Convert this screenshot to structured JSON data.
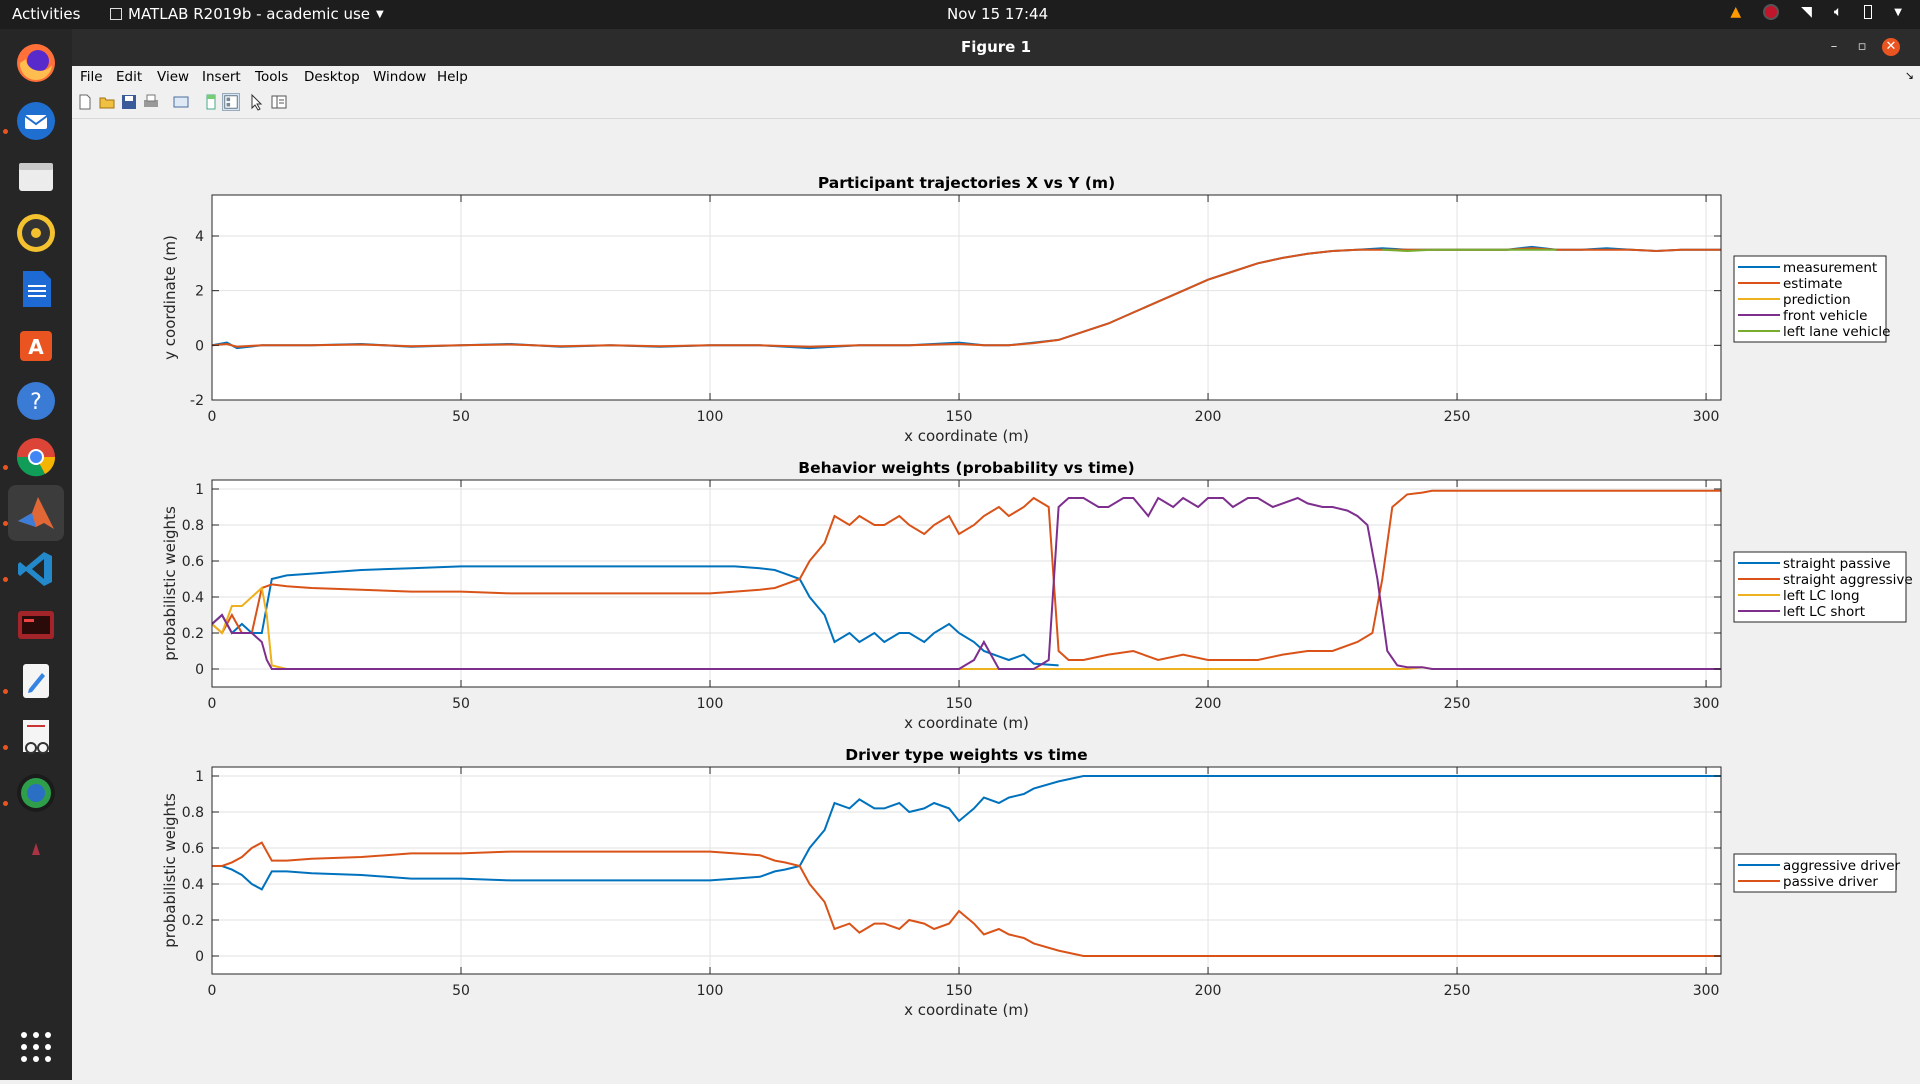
{
  "topbar": {
    "activities": "Activities",
    "app_menu": "MATLAB R2019b - academic use",
    "clock": "Nov 15  17:44"
  },
  "dock": {
    "items": [
      "firefox-icon",
      "thunderbird-icon",
      "files-icon",
      "rhythmbox-icon",
      "writer-icon",
      "software-icon",
      "help-icon",
      "chrome-icon",
      "matlab-icon",
      "vscode-icon",
      "terminal-app-icon",
      "text-editor-icon",
      "document-viewer-icon",
      "globe-app-icon",
      "settings-cone-icon",
      "show-apps-icon"
    ]
  },
  "window": {
    "title": "Figure 1",
    "menu": [
      "File",
      "Edit",
      "View",
      "Insert",
      "Tools",
      "Desktop",
      "Window",
      "Help"
    ]
  },
  "colors": {
    "blue": "#0072bd",
    "orange": "#d95319",
    "yellow": "#edb120",
    "purple": "#7e2f8e",
    "green": "#77ac30"
  },
  "chart_data": [
    {
      "type": "line",
      "title": "Participant trajectories X vs Y (m)",
      "xlabel": "x coordinate (m)",
      "ylabel": "y coordinate (m)",
      "xlim": [
        0,
        303
      ],
      "ylim": [
        -2,
        5.5
      ],
      "xticks": [
        0,
        50,
        100,
        150,
        200,
        250,
        300
      ],
      "yticks": [
        -2,
        0,
        2,
        4
      ],
      "grid": true,
      "legend": "right",
      "series": [
        {
          "name": "measurement",
          "color": "#0072bd",
          "x": [
            0,
            3,
            5,
            10,
            20,
            30,
            40,
            50,
            60,
            70,
            80,
            90,
            100,
            110,
            120,
            130,
            140,
            150,
            155,
            160,
            165,
            170,
            175,
            180,
            185,
            190,
            195,
            200,
            205,
            210,
            215,
            220,
            225,
            230,
            235,
            240,
            245,
            250,
            255,
            260,
            265,
            270,
            275,
            280,
            285,
            290,
            295,
            300,
            303
          ],
          "y": [
            0,
            0.1,
            -0.1,
            0,
            0,
            0.05,
            -0.05,
            0,
            0.05,
            -0.05,
            0,
            -0.05,
            0,
            0,
            -0.1,
            0,
            0,
            0.1,
            0,
            0,
            0.1,
            0.2,
            0.5,
            0.8,
            1.2,
            1.6,
            2.0,
            2.4,
            2.7,
            3.0,
            3.2,
            3.35,
            3.45,
            3.5,
            3.55,
            3.5,
            3.5,
            3.5,
            3.5,
            3.5,
            3.6,
            3.5,
            3.5,
            3.55,
            3.5,
            3.45,
            3.5,
            3.5,
            3.5
          ]
        },
        {
          "name": "estimate",
          "color": "#d95319",
          "x": [
            0,
            3,
            5,
            10,
            20,
            30,
            40,
            50,
            60,
            70,
            80,
            90,
            100,
            110,
            120,
            130,
            140,
            150,
            155,
            160,
            165,
            170,
            175,
            180,
            185,
            190,
            195,
            200,
            205,
            210,
            215,
            220,
            225,
            230,
            235,
            240,
            245,
            250,
            255,
            260,
            265,
            270,
            275,
            280,
            285,
            290,
            295,
            300,
            303
          ],
          "y": [
            0,
            0.05,
            -0.05,
            0,
            0,
            0.03,
            -0.03,
            0,
            0.03,
            -0.03,
            0,
            -0.03,
            0,
            0,
            -0.05,
            0,
            0,
            0.05,
            0,
            0,
            0.08,
            0.2,
            0.5,
            0.8,
            1.2,
            1.6,
            2.0,
            2.4,
            2.7,
            3.0,
            3.2,
            3.35,
            3.45,
            3.5,
            3.5,
            3.5,
            3.5,
            3.5,
            3.5,
            3.5,
            3.55,
            3.5,
            3.5,
            3.5,
            3.5,
            3.45,
            3.5,
            3.5,
            3.5
          ]
        },
        {
          "name": "prediction",
          "color": "#edb120",
          "x": [],
          "y": []
        },
        {
          "name": "front vehicle",
          "color": "#7e2f8e",
          "x": [],
          "y": []
        },
        {
          "name": "left lane vehicle",
          "color": "#77ac30",
          "x": [
            235,
            240,
            245,
            250,
            255,
            260,
            265,
            270
          ],
          "y": [
            3.5,
            3.45,
            3.5,
            3.5,
            3.5,
            3.5,
            3.5,
            3.5
          ]
        }
      ]
    },
    {
      "type": "line",
      "title": "Behavior weights (probability vs time)",
      "xlabel": "x coordinate (m)",
      "ylabel": "probabilistic weights",
      "xlim": [
        0,
        303
      ],
      "ylim": [
        -0.1,
        1.05
      ],
      "xticks": [
        0,
        50,
        100,
        150,
        200,
        250,
        300
      ],
      "yticks": [
        0,
        0.2,
        0.4,
        0.6,
        0.8,
        1
      ],
      "grid": true,
      "legend": "right",
      "series": [
        {
          "name": "straight passive",
          "color": "#0072bd",
          "x": [
            0,
            2,
            4,
            6,
            8,
            10,
            12,
            15,
            20,
            30,
            40,
            50,
            60,
            70,
            80,
            90,
            100,
            105,
            110,
            113,
            115,
            118,
            120,
            123,
            125,
            128,
            130,
            133,
            135,
            138,
            140,
            143,
            145,
            148,
            150,
            153,
            155,
            158,
            160,
            163,
            165,
            170
          ],
          "y": [
            0.25,
            0.3,
            0.2,
            0.25,
            0.2,
            0.2,
            0.5,
            0.52,
            0.53,
            0.55,
            0.56,
            0.57,
            0.57,
            0.57,
            0.57,
            0.57,
            0.57,
            0.57,
            0.56,
            0.55,
            0.53,
            0.5,
            0.4,
            0.3,
            0.15,
            0.2,
            0.15,
            0.2,
            0.15,
            0.2,
            0.2,
            0.15,
            0.2,
            0.25,
            0.2,
            0.15,
            0.1,
            0.07,
            0.05,
            0.08,
            0.03,
            0.02
          ]
        },
        {
          "name": "straight aggressive",
          "color": "#d95319",
          "x": [
            0,
            2,
            4,
            6,
            8,
            10,
            12,
            15,
            20,
            30,
            40,
            50,
            60,
            70,
            80,
            90,
            100,
            105,
            110,
            113,
            115,
            118,
            120,
            123,
            125,
            128,
            130,
            133,
            135,
            138,
            140,
            143,
            145,
            148,
            150,
            153,
            155,
            158,
            160,
            163,
            165,
            168,
            170,
            172,
            175,
            180,
            185,
            190,
            195,
            200,
            205,
            210,
            215,
            220,
            225,
            230,
            233,
            235,
            237,
            240,
            243,
            245,
            250,
            260,
            270,
            280,
            290,
            303
          ],
          "y": [
            0.25,
            0.2,
            0.3,
            0.2,
            0.2,
            0.45,
            0.47,
            0.46,
            0.45,
            0.44,
            0.43,
            0.43,
            0.42,
            0.42,
            0.42,
            0.42,
            0.42,
            0.43,
            0.44,
            0.45,
            0.47,
            0.5,
            0.6,
            0.7,
            0.85,
            0.8,
            0.85,
            0.8,
            0.8,
            0.85,
            0.8,
            0.75,
            0.8,
            0.85,
            0.75,
            0.8,
            0.85,
            0.9,
            0.85,
            0.9,
            0.95,
            0.9,
            0.1,
            0.05,
            0.05,
            0.08,
            0.1,
            0.05,
            0.08,
            0.05,
            0.05,
            0.05,
            0.08,
            0.1,
            0.1,
            0.15,
            0.2,
            0.5,
            0.9,
            0.97,
            0.98,
            0.99,
            0.99,
            0.99,
            0.99,
            0.99,
            0.99,
            0.99
          ]
        },
        {
          "name": "left LC long",
          "color": "#edb120",
          "x": [
            0,
            2,
            4,
            6,
            8,
            10,
            11,
            12,
            15,
            20,
            50,
            100,
            150,
            200,
            240,
            243,
            245,
            250,
            303
          ],
          "y": [
            0.25,
            0.2,
            0.35,
            0.35,
            0.4,
            0.45,
            0.3,
            0.02,
            0,
            0,
            0,
            0,
            0,
            0,
            0,
            0.01,
            0,
            0,
            0
          ]
        },
        {
          "name": "left LC short",
          "color": "#7e2f8e",
          "x": [
            0,
            2,
            4,
            6,
            8,
            10,
            11,
            12,
            15,
            20,
            50,
            100,
            150,
            153,
            155,
            158,
            160,
            163,
            165,
            168,
            170,
            172,
            175,
            178,
            180,
            183,
            185,
            188,
            190,
            193,
            195,
            198,
            200,
            203,
            205,
            208,
            210,
            213,
            215,
            218,
            220,
            223,
            225,
            228,
            230,
            232,
            234,
            236,
            238,
            240,
            243,
            245,
            250,
            303
          ],
          "y": [
            0.25,
            0.3,
            0.2,
            0.2,
            0.2,
            0.15,
            0.05,
            0,
            0,
            0,
            0,
            0,
            0,
            0.05,
            0.15,
            0,
            0,
            0,
            0,
            0.05,
            0.9,
            0.95,
            0.95,
            0.9,
            0.9,
            0.95,
            0.95,
            0.85,
            0.95,
            0.9,
            0.95,
            0.9,
            0.95,
            0.95,
            0.9,
            0.95,
            0.95,
            0.9,
            0.92,
            0.95,
            0.92,
            0.9,
            0.9,
            0.88,
            0.85,
            0.8,
            0.5,
            0.1,
            0.02,
            0.01,
            0.01,
            0,
            0,
            0
          ]
        }
      ]
    },
    {
      "type": "line",
      "title": "Driver type weights vs time",
      "xlabel": "x coordinate (m)",
      "ylabel": "probabilistic weights",
      "xlim": [
        0,
        303
      ],
      "ylim": [
        -0.1,
        1.05
      ],
      "xticks": [
        0,
        50,
        100,
        150,
        200,
        250,
        300
      ],
      "yticks": [
        0,
        0.2,
        0.4,
        0.6,
        0.8,
        1
      ],
      "grid": true,
      "legend": "right",
      "series": [
        {
          "name": "aggressive driver",
          "color": "#0072bd",
          "x": [
            0,
            2,
            4,
            6,
            8,
            10,
            12,
            15,
            20,
            30,
            40,
            50,
            60,
            70,
            80,
            90,
            100,
            105,
            110,
            113,
            115,
            118,
            120,
            123,
            125,
            128,
            130,
            133,
            135,
            138,
            140,
            143,
            145,
            148,
            150,
            153,
            155,
            158,
            160,
            163,
            165,
            170,
            175,
            200,
            250,
            303
          ],
          "y": [
            0.5,
            0.5,
            0.48,
            0.45,
            0.4,
            0.37,
            0.47,
            0.47,
            0.46,
            0.45,
            0.43,
            0.43,
            0.42,
            0.42,
            0.42,
            0.42,
            0.42,
            0.43,
            0.44,
            0.47,
            0.48,
            0.5,
            0.6,
            0.7,
            0.85,
            0.82,
            0.87,
            0.82,
            0.82,
            0.85,
            0.8,
            0.82,
            0.85,
            0.82,
            0.75,
            0.82,
            0.88,
            0.85,
            0.88,
            0.9,
            0.93,
            0.97,
            1,
            1,
            1,
            1
          ]
        },
        {
          "name": "passive driver",
          "color": "#d95319",
          "x": [
            0,
            2,
            4,
            6,
            8,
            10,
            12,
            15,
            20,
            30,
            40,
            50,
            60,
            70,
            80,
            90,
            100,
            105,
            110,
            113,
            115,
            118,
            120,
            123,
            125,
            128,
            130,
            133,
            135,
            138,
            140,
            143,
            145,
            148,
            150,
            153,
            155,
            158,
            160,
            163,
            165,
            170,
            175,
            200,
            250,
            303
          ],
          "y": [
            0.5,
            0.5,
            0.52,
            0.55,
            0.6,
            0.63,
            0.53,
            0.53,
            0.54,
            0.55,
            0.57,
            0.57,
            0.58,
            0.58,
            0.58,
            0.58,
            0.58,
            0.57,
            0.56,
            0.53,
            0.52,
            0.5,
            0.4,
            0.3,
            0.15,
            0.18,
            0.13,
            0.18,
            0.18,
            0.15,
            0.2,
            0.18,
            0.15,
            0.18,
            0.25,
            0.18,
            0.12,
            0.15,
            0.12,
            0.1,
            0.07,
            0.03,
            0,
            0,
            0,
            0
          ]
        }
      ]
    }
  ]
}
